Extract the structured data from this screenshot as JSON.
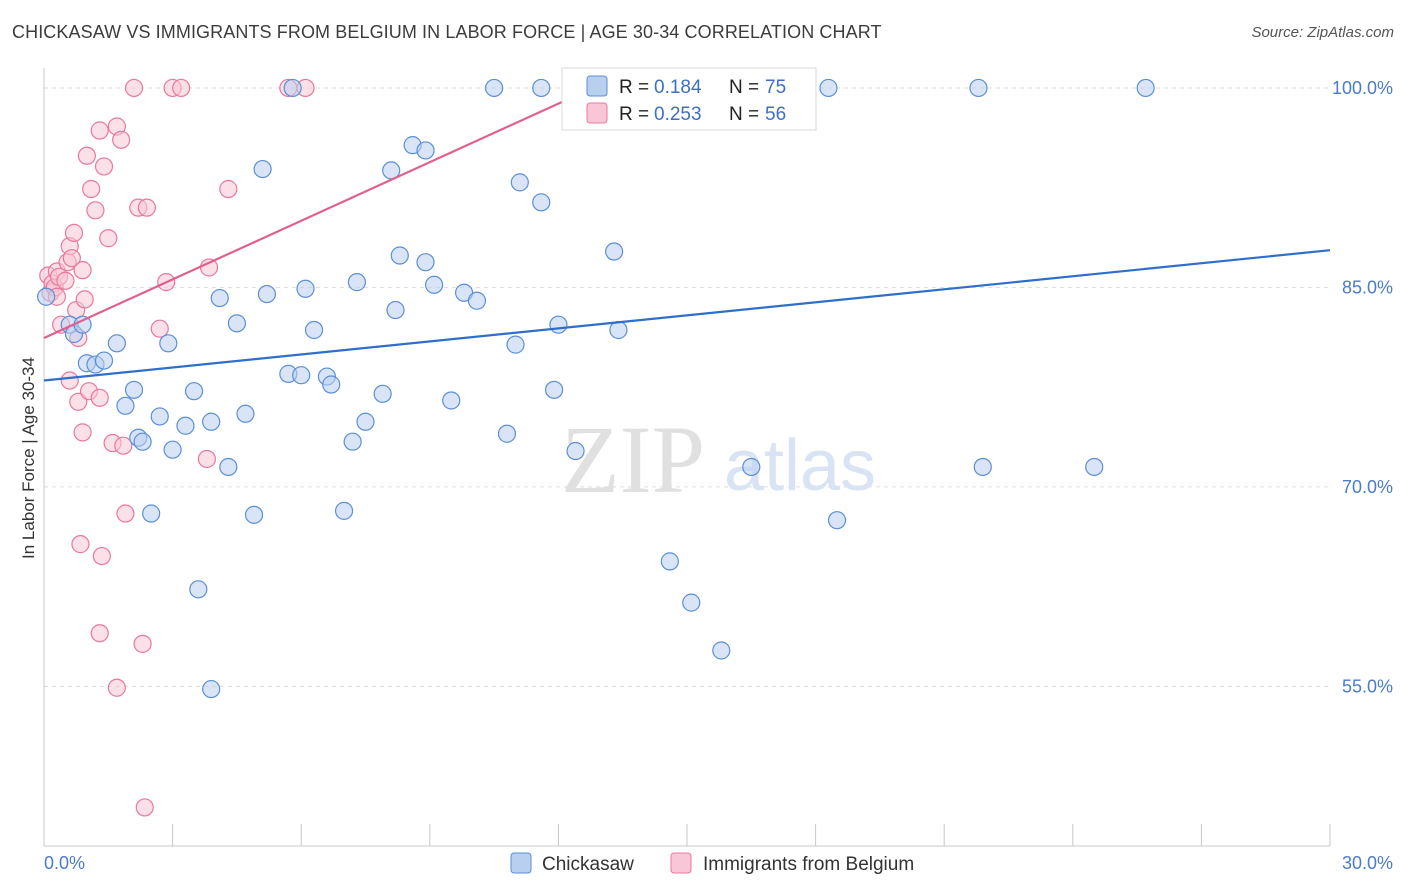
{
  "title": "CHICKASAW VS IMMIGRANTS FROM BELGIUM IN LABOR FORCE | AGE 30-34 CORRELATION CHART",
  "source": "Source: ZipAtlas.com",
  "colors": {
    "blue_fill": "#b9cff0",
    "blue_stroke": "#5b8fd6",
    "blue_line": "#2f6fcc",
    "pink_fill": "#f8c6d6",
    "pink_stroke": "#e8799d",
    "pink_line": "#e0608d",
    "axis_text": "#4a7cc7",
    "grid": "#dcdcdc"
  },
  "chart_data": {
    "type": "scatter",
    "title": "CHICKASAW VS IMMIGRANTS FROM BELGIUM IN LABOR FORCE | AGE 30-34 CORRELATION CHART",
    "xlabel": "",
    "ylabel": "In Labor Force | Age 30-34",
    "xlim": [
      0,
      30
    ],
    "ylim": [
      43,
      101.5
    ],
    "x_tick_labels": [
      "0.0%",
      "30.0%"
    ],
    "y_ticks": [
      55,
      70,
      85,
      100
    ],
    "y_tick_labels": [
      "55.0%",
      "70.0%",
      "85.0%",
      "100.0%"
    ],
    "grid": true,
    "watermark": {
      "zip": "ZIP",
      "atlas": "atlas"
    },
    "legend": [
      {
        "name": "Chickasaw",
        "r_label": "R =",
        "r": "0.184",
        "n_label": "N =",
        "n": "75"
      },
      {
        "name": "Immigrants from Belgium",
        "r_label": "R =",
        "r": "0.253",
        "n_label": "N =",
        "n": "56"
      }
    ],
    "series": [
      {
        "name": "Chickasaw",
        "trend": {
          "x": [
            0,
            30
          ],
          "y": [
            78.0,
            87.8
          ]
        },
        "points": [
          [
            0.05,
            84.3
          ],
          [
            0.6,
            82.2
          ],
          [
            0.7,
            81.5
          ],
          [
            0.9,
            82.2
          ],
          [
            1.0,
            79.3
          ],
          [
            1.2,
            79.2
          ],
          [
            1.4,
            79.5
          ],
          [
            1.7,
            80.8
          ],
          [
            1.9,
            76.1
          ],
          [
            2.1,
            77.3
          ],
          [
            2.2,
            73.7
          ],
          [
            2.3,
            73.4
          ],
          [
            2.5,
            68.0
          ],
          [
            2.7,
            75.3
          ],
          [
            2.9,
            80.8
          ],
          [
            3.0,
            72.8
          ],
          [
            3.3,
            74.6
          ],
          [
            3.5,
            77.2
          ],
          [
            3.6,
            62.3
          ],
          [
            3.9,
            54.8
          ],
          [
            3.9,
            74.9
          ],
          [
            4.1,
            84.2
          ],
          [
            4.3,
            71.5
          ],
          [
            4.5,
            82.3
          ],
          [
            4.7,
            75.5
          ],
          [
            4.9,
            67.9
          ],
          [
            5.1,
            93.9
          ],
          [
            5.2,
            84.5
          ],
          [
            5.7,
            78.5
          ],
          [
            5.8,
            100.0
          ],
          [
            6.0,
            78.4
          ],
          [
            6.1,
            84.9
          ],
          [
            6.3,
            81.8
          ],
          [
            6.6,
            78.3
          ],
          [
            6.7,
            77.7
          ],
          [
            7.0,
            68.2
          ],
          [
            7.2,
            73.4
          ],
          [
            7.3,
            85.4
          ],
          [
            7.5,
            74.9
          ],
          [
            7.9,
            77.0
          ],
          [
            8.1,
            93.8
          ],
          [
            8.2,
            83.3
          ],
          [
            8.3,
            87.4
          ],
          [
            8.6,
            95.7
          ],
          [
            8.9,
            86.9
          ],
          [
            8.9,
            95.3
          ],
          [
            9.1,
            85.2
          ],
          [
            9.5,
            76.5
          ],
          [
            9.8,
            84.6
          ],
          [
            10.1,
            84.0
          ],
          [
            10.5,
            100.0
          ],
          [
            10.8,
            74.0
          ],
          [
            11.0,
            80.7
          ],
          [
            11.1,
            92.9
          ],
          [
            11.6,
            100.0
          ],
          [
            11.6,
            91.4
          ],
          [
            11.9,
            77.3
          ],
          [
            12.0,
            82.2
          ],
          [
            12.4,
            72.7
          ],
          [
            13.3,
            87.7
          ],
          [
            13.4,
            81.8
          ],
          [
            14.6,
            64.4
          ],
          [
            15.1,
            61.3
          ],
          [
            15.8,
            57.7
          ],
          [
            16.3,
            100.0
          ],
          [
            16.5,
            71.5
          ],
          [
            18.3,
            100.0
          ],
          [
            18.5,
            67.5
          ],
          [
            21.8,
            100.0
          ],
          [
            21.9,
            71.5
          ],
          [
            24.5,
            71.5
          ],
          [
            25.7,
            100.0
          ]
        ]
      },
      {
        "name": "Immigrants from Belgium",
        "trend": {
          "x": [
            0,
            12.8
          ],
          "y": [
            81.2,
            100.0
          ]
        },
        "points": [
          [
            0.1,
            85.9
          ],
          [
            0.15,
            84.6
          ],
          [
            0.2,
            85.3
          ],
          [
            0.25,
            85.0
          ],
          [
            0.3,
            86.2
          ],
          [
            0.3,
            84.3
          ],
          [
            0.35,
            85.8
          ],
          [
            0.4,
            82.2
          ],
          [
            0.5,
            85.5
          ],
          [
            0.55,
            86.9
          ],
          [
            0.6,
            88.1
          ],
          [
            0.6,
            78.0
          ],
          [
            0.65,
            87.2
          ],
          [
            0.7,
            89.1
          ],
          [
            0.75,
            83.3
          ],
          [
            0.8,
            81.2
          ],
          [
            0.8,
            76.4
          ],
          [
            0.85,
            65.7
          ],
          [
            0.9,
            86.3
          ],
          [
            0.9,
            74.1
          ],
          [
            0.95,
            84.1
          ],
          [
            1.0,
            94.9
          ],
          [
            1.05,
            77.2
          ],
          [
            1.1,
            92.4
          ],
          [
            1.2,
            90.8
          ],
          [
            1.3,
            96.8
          ],
          [
            1.3,
            76.7
          ],
          [
            1.35,
            64.8
          ],
          [
            1.3,
            59.0
          ],
          [
            1.4,
            94.1
          ],
          [
            1.5,
            88.7
          ],
          [
            1.6,
            73.3
          ],
          [
            1.7,
            97.1
          ],
          [
            1.7,
            54.9
          ],
          [
            1.8,
            96.1
          ],
          [
            1.85,
            73.1
          ],
          [
            1.9,
            68.0
          ],
          [
            2.1,
            100.0
          ],
          [
            2.2,
            91.0
          ],
          [
            2.3,
            58.2
          ],
          [
            2.4,
            91.0
          ],
          [
            2.35,
            45.9
          ],
          [
            2.7,
            81.9
          ],
          [
            2.85,
            85.4
          ],
          [
            3.0,
            100.0
          ],
          [
            3.2,
            100.0
          ],
          [
            3.8,
            72.1
          ],
          [
            3.85,
            86.5
          ],
          [
            4.3,
            92.4
          ],
          [
            5.7,
            100.0
          ],
          [
            6.1,
            100.0
          ]
        ]
      }
    ]
  }
}
